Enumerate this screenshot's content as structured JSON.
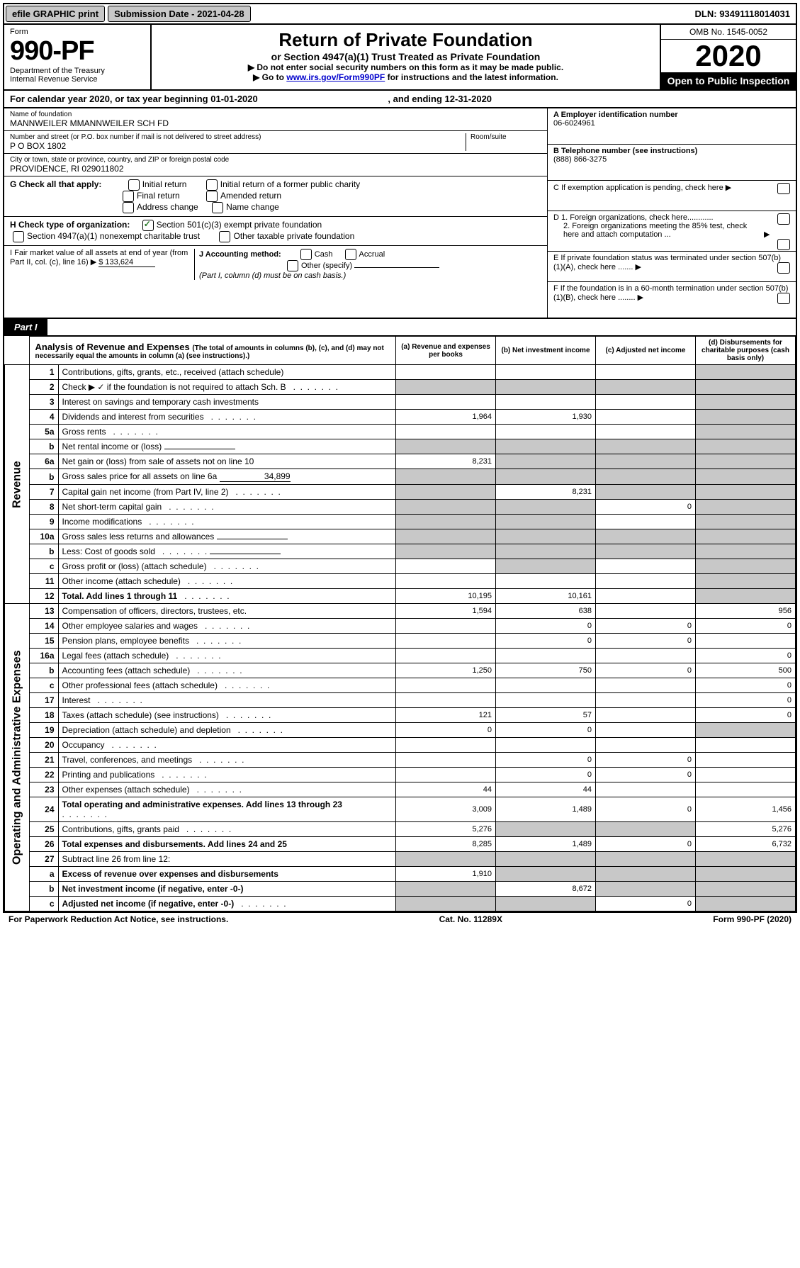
{
  "topbar": {
    "efile": "efile GRAPHIC print",
    "submission_label": "Submission Date - 2021-04-28",
    "dln": "DLN: 93491118014031"
  },
  "header": {
    "form_word": "Form",
    "form_number": "990-PF",
    "dept": "Department of the Treasury",
    "irs": "Internal Revenue Service",
    "title": "Return of Private Foundation",
    "subtitle": "or Section 4947(a)(1) Trust Treated as Private Foundation",
    "note1": "▶ Do not enter social security numbers on this form as it may be made public.",
    "note2_pre": "▶ Go to ",
    "note2_link": "www.irs.gov/Form990PF",
    "note2_post": " for instructions and the latest information.",
    "omb": "OMB No. 1545-0052",
    "year": "2020",
    "open_pub": "Open to Public Inspection"
  },
  "cal_year": {
    "label_pre": "For calendar year 2020, or tax year beginning ",
    "begin": "01-01-2020",
    "label_mid": " , and ending ",
    "end": "12-31-2020"
  },
  "info": {
    "name_label": "Name of foundation",
    "name": "MANNWEILER MMANNWEILER SCH FD",
    "addr_label": "Number and street (or P.O. box number if mail is not delivered to street address)",
    "room_label": "Room/suite",
    "addr": "P O BOX 1802",
    "city_label": "City or town, state or province, country, and ZIP or foreign postal code",
    "city": "PROVIDENCE, RI  029011802",
    "ein_label": "A Employer identification number",
    "ein": "06-6024961",
    "tel_label": "B Telephone number (see instructions)",
    "tel": "(888) 866-3275",
    "c_label": "C If exemption application is pending, check here",
    "d1": "D 1. Foreign organizations, check here............",
    "d2": "2. Foreign organizations meeting the 85% test, check here and attach computation ...",
    "e_label": "E  If private foundation status was terminated under section 507(b)(1)(A), check here .......",
    "f_label": "F  If the foundation is in a 60-month termination under section 507(b)(1)(B), check here ........"
  },
  "g": {
    "label": "G Check all that apply:",
    "opts": [
      "Initial return",
      "Initial return of a former public charity",
      "Final return",
      "Amended return",
      "Address change",
      "Name change"
    ]
  },
  "h": {
    "label": "H Check type of organization:",
    "opt1": "Section 501(c)(3) exempt private foundation",
    "opt2": "Section 4947(a)(1) nonexempt charitable trust",
    "opt3": "Other taxable private foundation"
  },
  "i": {
    "label": "I Fair market value of all assets at end of year (from Part II, col. (c), line 16) ▶",
    "value": "$  133,624"
  },
  "j": {
    "label": "J Accounting method:",
    "cash": "Cash",
    "accrual": "Accrual",
    "other": "Other (specify)",
    "note": "(Part I, column (d) must be on cash basis.)"
  },
  "part1": {
    "tab": "Part I",
    "title": "Analysis of Revenue and Expenses ",
    "title_note": "(The total of amounts in columns (b), (c), and (d) may not necessarily equal the amounts in column (a) (see instructions).)",
    "col_a": "(a) Revenue and expenses per books",
    "col_b": "(b) Net investment income",
    "col_c": "(c) Adjusted net income",
    "col_d": "(d) Disbursements for charitable purposes (cash basis only)"
  },
  "vlabels": {
    "revenue": "Revenue",
    "expenses": "Operating and Administrative Expenses"
  },
  "rows": [
    {
      "no": "1",
      "desc": "Contributions, gifts, grants, etc., received (attach schedule)",
      "a": "",
      "b": "",
      "c": "",
      "d": "",
      "sh": [
        "d"
      ]
    },
    {
      "no": "2",
      "desc": "Check ▶ ✓ if the foundation is not required to attach Sch. B",
      "dots": true,
      "a": "",
      "b": "",
      "c": "",
      "d": "",
      "sh": [
        "a",
        "b",
        "c",
        "d"
      ],
      "checked": true
    },
    {
      "no": "3",
      "desc": "Interest on savings and temporary cash investments",
      "a": "",
      "b": "",
      "c": "",
      "d": "",
      "sh": [
        "d"
      ]
    },
    {
      "no": "4",
      "desc": "Dividends and interest from securities",
      "dots": true,
      "a": "1,964",
      "b": "1,930",
      "c": "",
      "d": "",
      "sh": [
        "d"
      ]
    },
    {
      "no": "5a",
      "desc": "Gross rents",
      "dots": true,
      "a": "",
      "b": "",
      "c": "",
      "d": "",
      "sh": [
        "d"
      ]
    },
    {
      "no": "b",
      "desc": "Net rental income or (loss)",
      "inline": true,
      "a": "",
      "b": "",
      "c": "",
      "d": "",
      "sh": [
        "a",
        "b",
        "c",
        "d"
      ]
    },
    {
      "no": "6a",
      "desc": "Net gain or (loss) from sale of assets not on line 10",
      "a": "8,231",
      "b": "",
      "c": "",
      "d": "",
      "sh": [
        "b",
        "c",
        "d"
      ]
    },
    {
      "no": "b",
      "desc": "Gross sales price for all assets on line 6a",
      "inline": true,
      "inline_val": "34,899",
      "a": "",
      "b": "",
      "c": "",
      "d": "",
      "sh": [
        "a",
        "b",
        "c",
        "d"
      ]
    },
    {
      "no": "7",
      "desc": "Capital gain net income (from Part IV, line 2)",
      "dots": true,
      "a": "",
      "b": "8,231",
      "c": "",
      "d": "",
      "sh": [
        "a",
        "c",
        "d"
      ]
    },
    {
      "no": "8",
      "desc": "Net short-term capital gain",
      "dots": true,
      "a": "",
      "b": "",
      "c": "0",
      "d": "",
      "sh": [
        "a",
        "b",
        "d"
      ]
    },
    {
      "no": "9",
      "desc": "Income modifications",
      "dots": true,
      "a": "",
      "b": "",
      "c": "",
      "d": "",
      "sh": [
        "a",
        "b",
        "d"
      ]
    },
    {
      "no": "10a",
      "desc": "Gross sales less returns and allowances",
      "inline": true,
      "a": "",
      "b": "",
      "c": "",
      "d": "",
      "sh": [
        "a",
        "b",
        "c",
        "d"
      ]
    },
    {
      "no": "b",
      "desc": "Less: Cost of goods sold",
      "dots": true,
      "inline": true,
      "a": "",
      "b": "",
      "c": "",
      "d": "",
      "sh": [
        "a",
        "b",
        "c",
        "d"
      ]
    },
    {
      "no": "c",
      "desc": "Gross profit or (loss) (attach schedule)",
      "dots": true,
      "a": "",
      "b": "",
      "c": "",
      "d": "",
      "sh": [
        "b",
        "d"
      ]
    },
    {
      "no": "11",
      "desc": "Other income (attach schedule)",
      "dots": true,
      "a": "",
      "b": "",
      "c": "",
      "d": "",
      "sh": [
        "d"
      ]
    },
    {
      "no": "12",
      "desc": "Total. Add lines 1 through 11",
      "dots": true,
      "bold": true,
      "a": "10,195",
      "b": "10,161",
      "c": "",
      "d": "",
      "sh": [
        "d"
      ]
    },
    {
      "no": "13",
      "desc": "Compensation of officers, directors, trustees, etc.",
      "a": "1,594",
      "b": "638",
      "c": "",
      "d": "956",
      "section": "exp"
    },
    {
      "no": "14",
      "desc": "Other employee salaries and wages",
      "dots": true,
      "a": "",
      "b": "0",
      "c": "0",
      "d": "0"
    },
    {
      "no": "15",
      "desc": "Pension plans, employee benefits",
      "dots": true,
      "a": "",
      "b": "0",
      "c": "0",
      "d": ""
    },
    {
      "no": "16a",
      "desc": "Legal fees (attach schedule)",
      "dots": true,
      "a": "",
      "b": "",
      "c": "",
      "d": "0"
    },
    {
      "no": "b",
      "desc": "Accounting fees (attach schedule)",
      "dots": true,
      "a": "1,250",
      "b": "750",
      "c": "0",
      "d": "500"
    },
    {
      "no": "c",
      "desc": "Other professional fees (attach schedule)",
      "dots": true,
      "a": "",
      "b": "",
      "c": "",
      "d": "0"
    },
    {
      "no": "17",
      "desc": "Interest",
      "dots": true,
      "a": "",
      "b": "",
      "c": "",
      "d": "0"
    },
    {
      "no": "18",
      "desc": "Taxes (attach schedule) (see instructions)",
      "dots": true,
      "a": "121",
      "b": "57",
      "c": "",
      "d": "0"
    },
    {
      "no": "19",
      "desc": "Depreciation (attach schedule) and depletion",
      "dots": true,
      "a": "0",
      "b": "0",
      "c": "",
      "d": "",
      "sh": [
        "d"
      ]
    },
    {
      "no": "20",
      "desc": "Occupancy",
      "dots": true,
      "a": "",
      "b": "",
      "c": "",
      "d": ""
    },
    {
      "no": "21",
      "desc": "Travel, conferences, and meetings",
      "dots": true,
      "a": "",
      "b": "0",
      "c": "0",
      "d": ""
    },
    {
      "no": "22",
      "desc": "Printing and publications",
      "dots": true,
      "a": "",
      "b": "0",
      "c": "0",
      "d": ""
    },
    {
      "no": "23",
      "desc": "Other expenses (attach schedule)",
      "dots": true,
      "a": "44",
      "b": "44",
      "c": "",
      "d": ""
    },
    {
      "no": "24",
      "desc": "Total operating and administrative expenses. Add lines 13 through 23",
      "dots": true,
      "bold": true,
      "a": "3,009",
      "b": "1,489",
      "c": "0",
      "d": "1,456"
    },
    {
      "no": "25",
      "desc": "Contributions, gifts, grants paid",
      "dots": true,
      "a": "5,276",
      "b": "",
      "c": "",
      "d": "5,276",
      "sh": [
        "b",
        "c"
      ]
    },
    {
      "no": "26",
      "desc": "Total expenses and disbursements. Add lines 24 and 25",
      "bold": true,
      "a": "8,285",
      "b": "1,489",
      "c": "0",
      "d": "6,732"
    },
    {
      "no": "27",
      "desc": "Subtract line 26 from line 12:",
      "a": "",
      "b": "",
      "c": "",
      "d": "",
      "sh": [
        "a",
        "b",
        "c",
        "d"
      ]
    },
    {
      "no": "a",
      "desc": "Excess of revenue over expenses and disbursements",
      "bold": true,
      "a": "1,910",
      "b": "",
      "c": "",
      "d": "",
      "sh": [
        "b",
        "c",
        "d"
      ]
    },
    {
      "no": "b",
      "desc": "Net investment income (if negative, enter -0-)",
      "bold": true,
      "a": "",
      "b": "8,672",
      "c": "",
      "d": "",
      "sh": [
        "a",
        "c",
        "d"
      ]
    },
    {
      "no": "c",
      "desc": "Adjusted net income (if negative, enter -0-)",
      "dots": true,
      "bold": true,
      "a": "",
      "b": "",
      "c": "0",
      "d": "",
      "sh": [
        "a",
        "b",
        "d"
      ]
    }
  ],
  "footer": {
    "left": "For Paperwork Reduction Act Notice, see instructions.",
    "mid": "Cat. No. 11289X",
    "right": "Form 990-PF (2020)"
  }
}
